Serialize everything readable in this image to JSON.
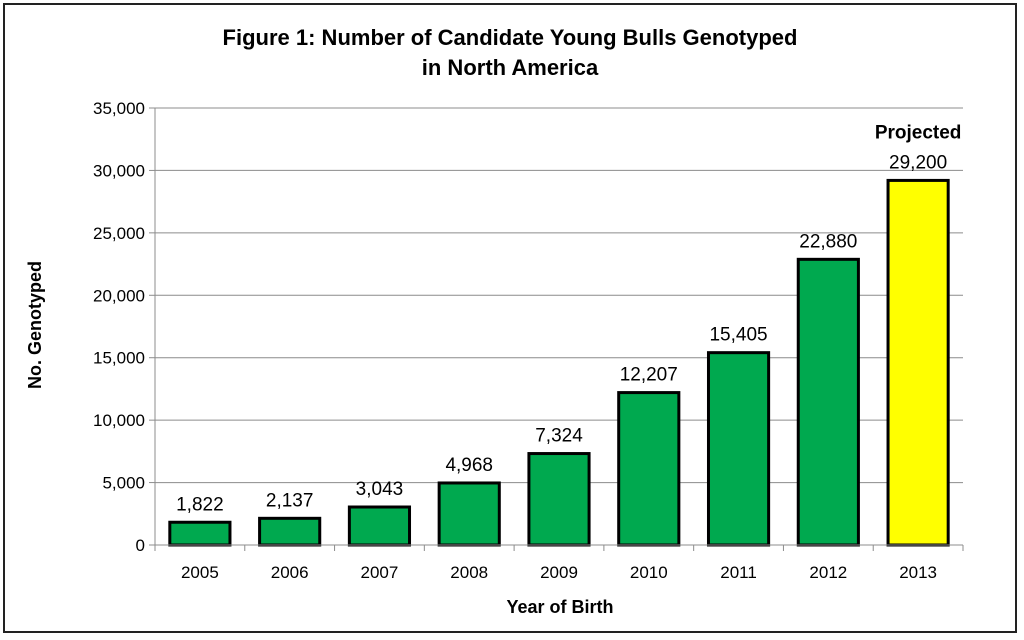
{
  "chart_data": {
    "type": "bar",
    "title": [
      "Figure 1: Number of Candidate Young Bulls Genotyped",
      "in North America"
    ],
    "xlabel": "Year of Birth",
    "ylabel": "No. Genotyped",
    "categories": [
      "2005",
      "2006",
      "2007",
      "2008",
      "2009",
      "2010",
      "2011",
      "2012",
      "2013"
    ],
    "values": [
      1822,
      2137,
      3043,
      4968,
      7324,
      12207,
      15405,
      22880,
      29200
    ],
    "data_labels": [
      "1,822",
      "2,137",
      "3,043",
      "4,968",
      "7,324",
      "12,207",
      "15,405",
      "22,880",
      "29,200"
    ],
    "ylim": [
      0,
      35000
    ],
    "yticks": [
      0,
      5000,
      10000,
      15000,
      20000,
      25000,
      30000,
      35000
    ],
    "ytick_labels": [
      "0",
      "5,000",
      "10,000",
      "15,000",
      "20,000",
      "25,000",
      "30,000",
      "35,000"
    ],
    "grid": true,
    "annotation": {
      "text": "Projected",
      "category": "2013"
    },
    "colors": {
      "bar": "#00a94f",
      "highlight": "#ffff00",
      "outline": "#000000",
      "grid": "#8c8c8c"
    },
    "highlight_categories": [
      "2013"
    ]
  }
}
